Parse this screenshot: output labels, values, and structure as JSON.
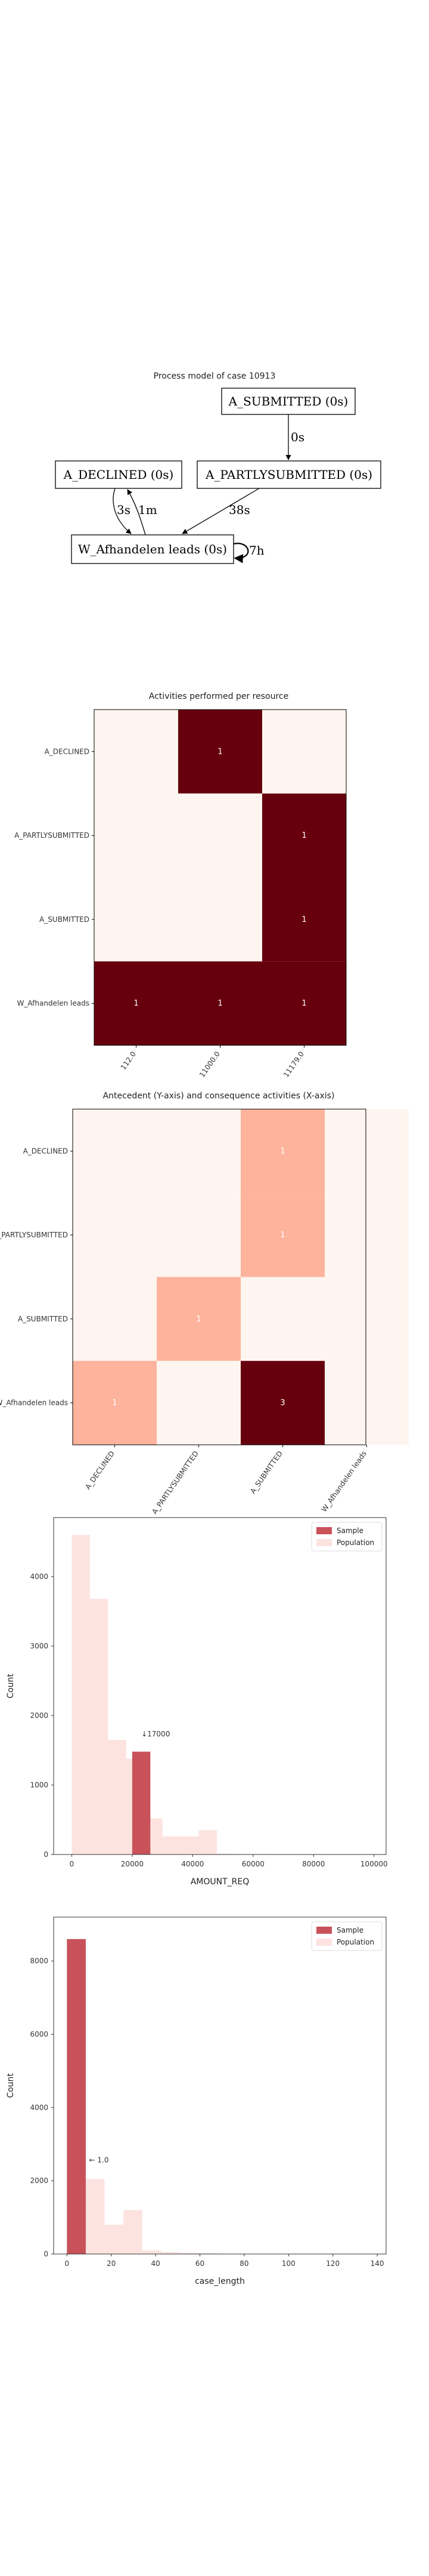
{
  "process_model": {
    "title": "Process model of case 10913",
    "nodes": [
      {
        "id": "sub",
        "label": "A_SUBMITTED (0s)"
      },
      {
        "id": "dec",
        "label": "A_DECLINED (0s)"
      },
      {
        "id": "part",
        "label": "A_PARTLYSUBMITTED (0s)"
      },
      {
        "id": "w",
        "label": "W_Afhandelen leads (0s)"
      }
    ],
    "edges": [
      {
        "from": "sub",
        "to": "part",
        "label": "0s"
      },
      {
        "from": "part",
        "to": "w",
        "label": "38s"
      },
      {
        "from": "dec",
        "to": "w",
        "label": "3s"
      },
      {
        "from": "w",
        "to": "dec",
        "label": "1m"
      },
      {
        "from": "w",
        "to": "w",
        "label": "7h"
      }
    ]
  },
  "chart_data": [
    {
      "type": "heatmap",
      "title": "Activities performed per resource",
      "x_categories": [
        "112.0",
        "11000.0",
        "11179.0"
      ],
      "y_categories": [
        "A_DECLINED",
        "A_PARTLYSUBMITTED",
        "A_SUBMITTED",
        "W_Afhandelen leads"
      ],
      "values": [
        [
          0,
          1,
          0
        ],
        [
          0,
          0,
          1
        ],
        [
          0,
          0,
          1
        ],
        [
          1,
          1,
          1
        ]
      ],
      "colormap": [
        "#fff5f0",
        "#67000d"
      ]
    },
    {
      "type": "heatmap",
      "title": "Antecedent (Y-axis) and consequence activities (X-axis)",
      "x_categories": [
        "A_DECLINED",
        "A_PARTLYSUBMITTED",
        "A_SUBMITTED",
        "W_Afhandelen leads"
      ],
      "y_categories": [
        "A_DECLINED",
        "A_PARTLYSUBMITTED",
        "A_SUBMITTED",
        "W_Afhandelen leads"
      ],
      "values": [
        [
          0,
          0,
          1,
          0
        ],
        [
          0,
          0,
          1,
          0
        ],
        [
          0,
          1,
          0,
          0
        ],
        [
          1,
          0,
          3,
          0
        ]
      ],
      "colormap": [
        "#fff5f0",
        "#fc9272",
        "#67000d"
      ]
    },
    {
      "type": "bar",
      "title": "",
      "xlabel": "AMOUNT_REQ",
      "ylabel": "Count",
      "xlim": [
        -6000,
        104000
      ],
      "ylim": [
        0,
        4850
      ],
      "xticks": [
        0,
        20000,
        40000,
        60000,
        80000,
        100000
      ],
      "yticks": [
        0,
        1000,
        2000,
        3000,
        4000
      ],
      "bin_width": 6000,
      "population_bins": [
        {
          "x": 0,
          "count": 4600
        },
        {
          "x": 6000,
          "count": 3680
        },
        {
          "x": 12000,
          "count": 1650
        },
        {
          "x": 18000,
          "count": 1380
        },
        {
          "x": 24000,
          "count": 520
        },
        {
          "x": 30000,
          "count": 260
        },
        {
          "x": 36000,
          "count": 260
        },
        {
          "x": 42000,
          "count": 350
        },
        {
          "x": 48000,
          "count": 10
        },
        {
          "x": 54000,
          "count": 5
        },
        {
          "x": 60000,
          "count": 5
        },
        {
          "x": 66000,
          "count": 3
        }
      ],
      "sample_bins": [
        {
          "x": 20000,
          "count": 1480
        }
      ],
      "annotation": {
        "text": "↓17000",
        "x": 23000,
        "y": 1700
      },
      "legend": {
        "position": "top-right",
        "entries": [
          "Sample",
          "Population"
        ]
      },
      "colors": {
        "sample": "#c9525a",
        "population": "#fde3e0"
      }
    },
    {
      "type": "bar",
      "title": "",
      "xlabel": "case_length",
      "ylabel": "Count",
      "xlim": [
        -6,
        144
      ],
      "ylim": [
        0,
        9200
      ],
      "xticks": [
        0,
        20,
        40,
        60,
        80,
        100,
        120,
        140
      ],
      "yticks": [
        0,
        2000,
        4000,
        6000,
        8000
      ],
      "bin_width": 8.5,
      "population_bins": [
        {
          "x": 0,
          "count": 8600
        },
        {
          "x": 8.5,
          "count": 2050
        },
        {
          "x": 17,
          "count": 800
        },
        {
          "x": 25.5,
          "count": 1200
        },
        {
          "x": 34,
          "count": 100
        },
        {
          "x": 42.5,
          "count": 50
        },
        {
          "x": 51,
          "count": 30
        },
        {
          "x": 59.5,
          "count": 20
        }
      ],
      "sample_bins": [
        {
          "x": 0,
          "count": 8600
        }
      ],
      "annotation": {
        "text": "← 1.0",
        "x": 10,
        "y": 2500
      },
      "legend": {
        "position": "top-right",
        "entries": [
          "Sample",
          "Population"
        ]
      },
      "colors": {
        "sample": "#c9525a",
        "population": "#fde3e0"
      }
    }
  ]
}
